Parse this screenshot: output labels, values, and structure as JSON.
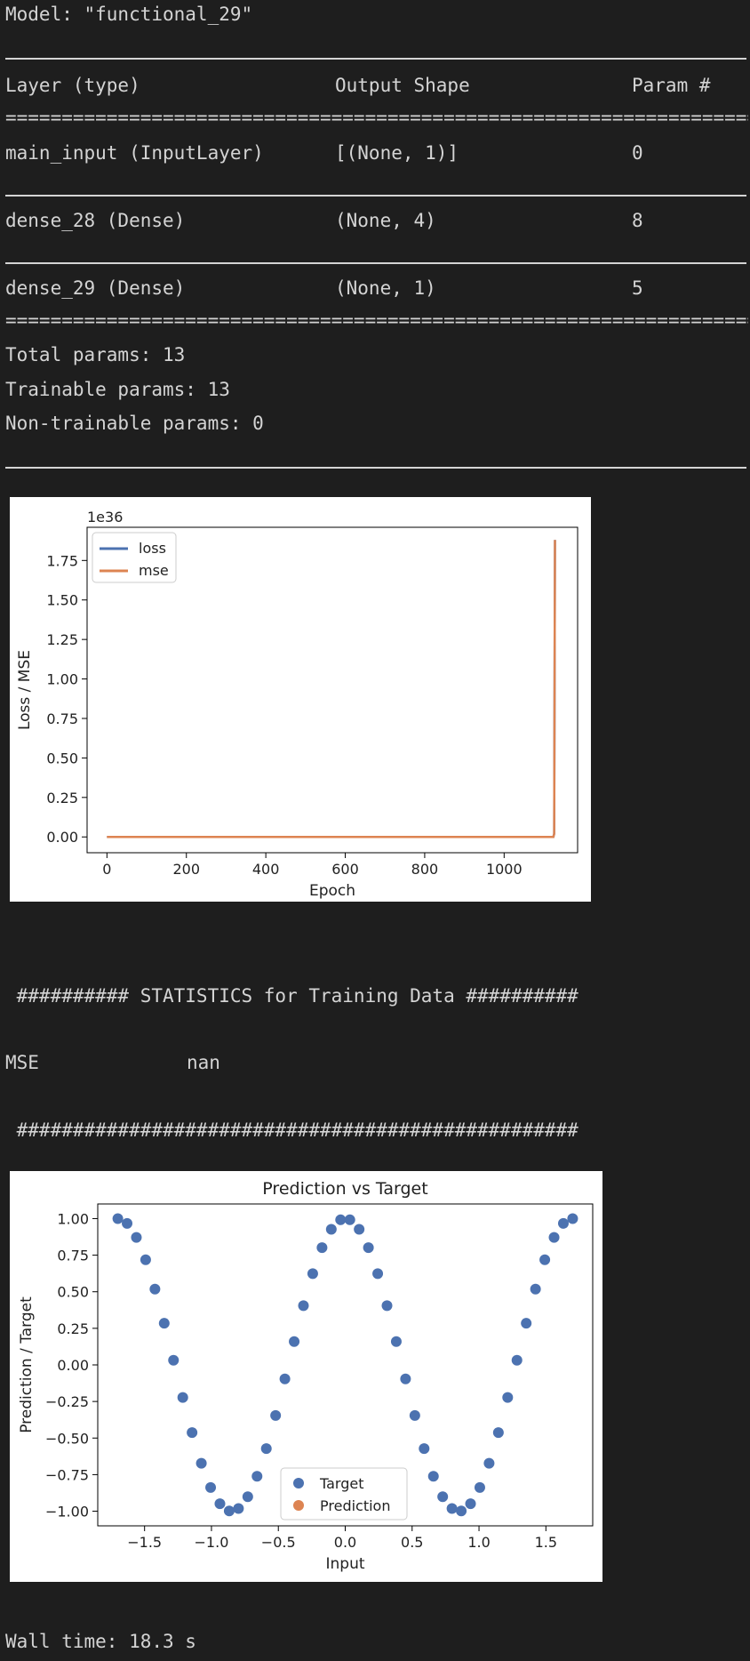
{
  "summary": {
    "model_line": "Model: \"functional_29\"",
    "headers": [
      "Layer (type)",
      "Output Shape",
      "Param #"
    ],
    "rows": [
      {
        "layer": "main_input (InputLayer)",
        "shape": "[(None, 1)]",
        "params": "0"
      },
      {
        "layer": "dense_28 (Dense)",
        "shape": "(None, 4)",
        "params": "8"
      },
      {
        "layer": "dense_29 (Dense)",
        "shape": "(None, 1)",
        "params": "5"
      }
    ],
    "total": "Total params: 13",
    "trainable": "Trainable params: 13",
    "non_trainable": "Non-trainable params: 0",
    "double_rule": "=================================================================================="
  },
  "stats": {
    "header": " ########## STATISTICS for Training Data ##########",
    "mse_label": "MSE",
    "mse_value": "nan",
    "footer": " ##################################################"
  },
  "wall_time": "Wall time: 18.3 s",
  "colors": {
    "blue": "#4c72b0",
    "orange": "#dd8452",
    "bg": "#1e1e1e",
    "text": "#d4d4d4"
  },
  "chart_data": [
    {
      "type": "line",
      "title": "",
      "xlabel": "Epoch",
      "ylabel": "Loss / MSE",
      "offset_text": "1e36",
      "xlim": [
        -50,
        1185
      ],
      "ylim": [
        -0.1,
        1.96
      ],
      "xticks": [
        0,
        200,
        400,
        600,
        800,
        1000
      ],
      "yticks": [
        0.0,
        0.25,
        0.5,
        0.75,
        1.0,
        1.25,
        1.5,
        1.75
      ],
      "ytick_labels": [
        "0.00",
        "0.25",
        "0.50",
        "0.75",
        "1.00",
        "1.25",
        "1.50",
        "1.75"
      ],
      "legend": "upper-left",
      "series": [
        {
          "name": "loss",
          "color": "#4c72b0",
          "x": [
            0,
            1124,
            1126,
            1128
          ],
          "y": [
            0.0,
            0.0,
            0.02,
            1.88
          ]
        },
        {
          "name": "mse",
          "color": "#dd8452",
          "x": [
            0,
            1124,
            1126,
            1128
          ],
          "y": [
            0.0,
            0.0,
            0.02,
            1.88
          ]
        }
      ]
    },
    {
      "type": "scatter",
      "title": "Prediction vs Target",
      "xlabel": "Input",
      "ylabel": "Prediction / Target",
      "xlim": [
        -1.85,
        1.85
      ],
      "ylim": [
        -1.1,
        1.1
      ],
      "xticks": [
        -1.5,
        -1.0,
        -0.5,
        0.0,
        0.5,
        1.0,
        1.5
      ],
      "xtick_labels": [
        "−1.5",
        "−1.0",
        "−0.5",
        "0.0",
        "0.5",
        "1.0",
        "1.5"
      ],
      "yticks": [
        1.0,
        0.75,
        0.5,
        0.25,
        0.0,
        -0.25,
        -0.5,
        -0.75,
        -1.0
      ],
      "ytick_labels": [
        "1.00",
        "0.75",
        "0.50",
        "0.25",
        "0.00",
        "−0.25",
        "−0.50",
        "−0.75",
        "−1.00"
      ],
      "legend": "lower-center",
      "series": [
        {
          "name": "Target",
          "color": "#4c72b0",
          "formula_note": "",
          "x_start": -1.7,
          "x_end": 1.7,
          "count": 50
        },
        {
          "name": "Prediction",
          "color": "#dd8452",
          "x": [],
          "y": []
        }
      ]
    }
  ]
}
